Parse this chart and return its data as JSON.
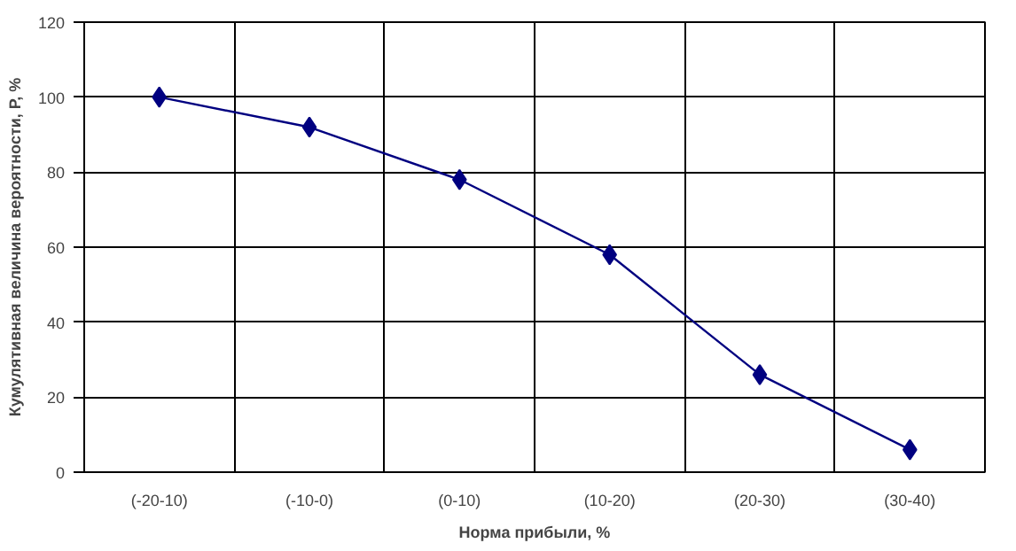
{
  "chart_data": {
    "type": "line",
    "xlabel": "Норма прибыли, %",
    "ylabel": "Кумулятивная величина вероятности, Р, %",
    "categories": [
      "(-20-10)",
      "(-10-0)",
      "(0-10)",
      "(10-20)",
      "(20-30)",
      "(30-40)"
    ],
    "series": [
      {
        "color": "#000080",
        "values": [
          100,
          92,
          78,
          58,
          26,
          6
        ]
      }
    ],
    "ylim": [
      0,
      120
    ],
    "yticks": [
      0,
      20,
      40,
      60,
      80,
      100,
      120
    ],
    "grid": true,
    "marker": "diamond",
    "line_style": "solid"
  }
}
